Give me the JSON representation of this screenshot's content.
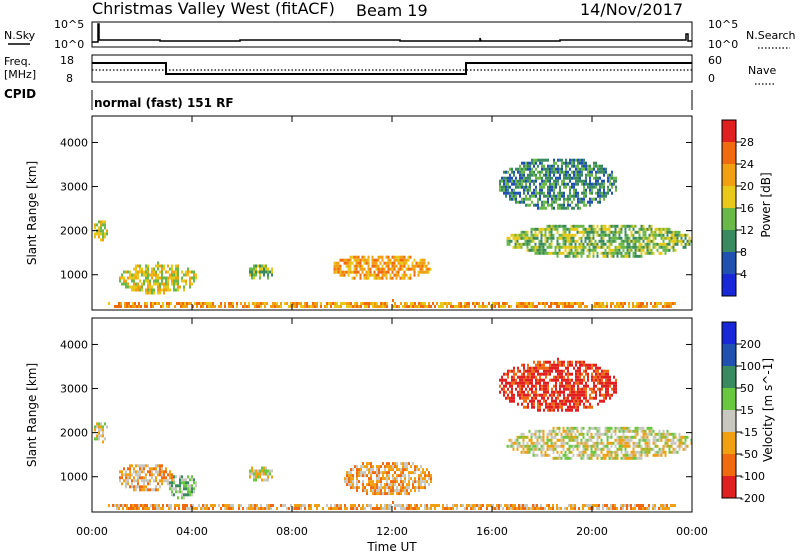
{
  "header": {
    "title": "Christmas Valley West (fitACF)",
    "beam": "Beam 19",
    "date": "14/Nov/2017"
  },
  "strips": {
    "nsky": {
      "label": "N.Sky",
      "ticks": [
        "10^5",
        "10^0"
      ],
      "right_label": "N.Search",
      "right_ticks": [
        "10^5",
        "10^0"
      ]
    },
    "freq": {
      "label_line1": "Freq.",
      "label_line2": "[MHz]",
      "ticks": [
        "18",
        "8"
      ],
      "right_label": "Nave",
      "right_ticks": [
        "60",
        "0"
      ]
    },
    "cpid": {
      "label": "CPID",
      "text": "normal (fast) 151 RF"
    }
  },
  "chart_data": [
    {
      "type": "heatmap",
      "quantity": "Power",
      "colorbar_label": "Power [dB]",
      "colorbar_ticks": [
        "28",
        "24",
        "20",
        "16",
        "12",
        "8",
        "4"
      ],
      "colorbar_colors": [
        "#e02020",
        "#f06a10",
        "#f0a010",
        "#e8c818",
        "#6ab848",
        "#3a8a60",
        "#2050b0",
        "#1828d8"
      ],
      "ylabel": "Slant Range [km]",
      "yticks": [
        "4000",
        "3000",
        "2000",
        "1000"
      ],
      "ylim": [
        200,
        4600
      ],
      "xlim_hours": [
        0,
        24
      ],
      "regions": [
        {
          "t": [
            0.0,
            0.6
          ],
          "r": [
            1800,
            2300
          ],
          "level": 3
        },
        {
          "t": [
            1.0,
            4.2
          ],
          "r": [
            600,
            1300
          ],
          "level": 3
        },
        {
          "t": [
            6.2,
            7.2
          ],
          "r": [
            900,
            1300
          ],
          "level": 4
        },
        {
          "t": [
            9.5,
            13.6
          ],
          "r": [
            900,
            1500
          ],
          "level": 2
        },
        {
          "t": [
            16.5,
            24.0
          ],
          "r": [
            1400,
            2200
          ],
          "level": 4
        },
        {
          "t": [
            16.2,
            21.0
          ],
          "r": [
            2500,
            3700
          ],
          "level": 5
        },
        {
          "t": [
            0.0,
            24.0
          ],
          "r": [
            250,
            450
          ],
          "level": 2
        }
      ]
    },
    {
      "type": "heatmap",
      "quantity": "Velocity",
      "colorbar_label": "Velocity [m s^-1]",
      "colorbar_ticks": [
        "200",
        "100",
        "50",
        "15",
        "-15",
        "-50",
        "-100",
        "-200"
      ],
      "colorbar_colors": [
        "#1828d8",
        "#2050b0",
        "#3a8a60",
        "#6ac840",
        "#c8c8c0",
        "#f0a010",
        "#f06a10",
        "#e02020"
      ],
      "ylabel": "Slant Range [km]",
      "yticks": [
        "4000",
        "3000",
        "2000",
        "1000"
      ],
      "ylim": [
        200,
        4600
      ],
      "xlabel": "Time UT",
      "xticks": [
        "00:00",
        "04:00",
        "08:00",
        "12:00",
        "16:00",
        "20:00",
        "00:00"
      ],
      "xlim_hours": [
        0,
        24
      ],
      "regions": [
        {
          "t": [
            0.0,
            0.6
          ],
          "r": [
            1800,
            2300
          ],
          "level": 4
        },
        {
          "t": [
            1.0,
            3.2
          ],
          "r": [
            700,
            1350
          ],
          "level": 5
        },
        {
          "t": [
            3.0,
            4.2
          ],
          "r": [
            500,
            1100
          ],
          "level": 3
        },
        {
          "t": [
            6.2,
            7.2
          ],
          "r": [
            900,
            1300
          ],
          "level": 4
        },
        {
          "t": [
            10.0,
            13.6
          ],
          "r": [
            600,
            1400
          ],
          "level": 5
        },
        {
          "t": [
            16.5,
            24.0
          ],
          "r": [
            1400,
            2200
          ],
          "level": 4
        },
        {
          "t": [
            16.2,
            21.0
          ],
          "r": [
            2500,
            3700
          ],
          "level": 7
        },
        {
          "t": [
            0.0,
            24.0
          ],
          "r": [
            250,
            450
          ],
          "level": 5
        }
      ]
    }
  ]
}
